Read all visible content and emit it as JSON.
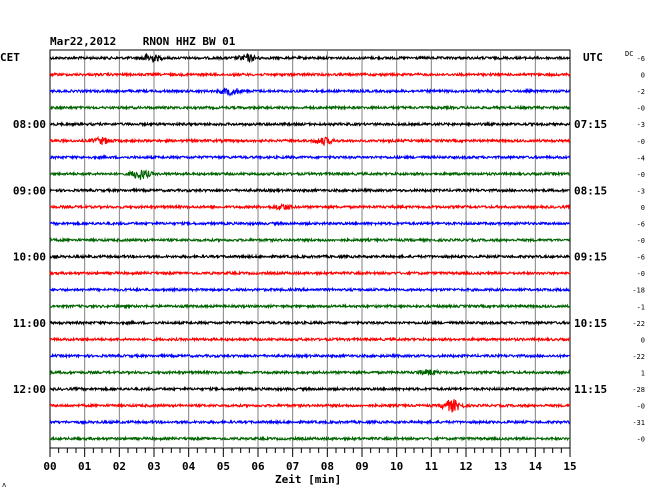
{
  "chart_data": {
    "type": "line",
    "title": "Mar22,2012    RNON HHZ BW 01",
    "left_timezone": "CET",
    "right_timezone": "UTC",
    "dc_header": "DC",
    "xlabel": "Zeit [min]",
    "xlim": [
      0,
      15
    ],
    "x_ticks": [
      "00",
      "01",
      "02",
      "03",
      "04",
      "05",
      "06",
      "07",
      "08",
      "09",
      "10",
      "11",
      "12",
      "13",
      "14",
      "15"
    ],
    "trace_count": 24,
    "trace_interval_min": 15,
    "trace_colors": [
      "#000000",
      "#ff0000",
      "#0000ff",
      "#006400"
    ],
    "left_hour_labels": [
      {
        "trace": 4,
        "text": "08:00"
      },
      {
        "trace": 8,
        "text": "09:00"
      },
      {
        "trace": 12,
        "text": "10:00"
      },
      {
        "trace": 16,
        "text": "11:00"
      },
      {
        "trace": 20,
        "text": "12:00"
      }
    ],
    "right_hour_labels": [
      {
        "trace": 4,
        "text": "07:15"
      },
      {
        "trace": 8,
        "text": "08:15"
      },
      {
        "trace": 12,
        "text": "09:15"
      },
      {
        "trace": 16,
        "text": "10:15"
      },
      {
        "trace": 20,
        "text": "11:15"
      }
    ],
    "dc_offsets": [
      "-6",
      "0",
      "-2",
      "-0",
      "-3",
      "-0",
      "-4",
      "-0",
      "-3",
      "0",
      "-6",
      "-0",
      "-6",
      "-0",
      "-18",
      "-1",
      "-22",
      "0",
      "-22",
      "1",
      "-28",
      "-0",
      "-31",
      "-0"
    ],
    "events": [
      {
        "trace": 0,
        "minute": 2.9,
        "amplitude": 2.0
      },
      {
        "trace": 0,
        "minute": 5.7,
        "amplitude": 1.6
      },
      {
        "trace": 2,
        "minute": 5.2,
        "amplitude": 1.8
      },
      {
        "trace": 5,
        "minute": 1.5,
        "amplitude": 1.5
      },
      {
        "trace": 5,
        "minute": 7.9,
        "amplitude": 1.6
      },
      {
        "trace": 7,
        "minute": 2.6,
        "amplitude": 2.5
      },
      {
        "trace": 9,
        "minute": 6.7,
        "amplitude": 1.3
      },
      {
        "trace": 19,
        "minute": 10.9,
        "amplitude": 1.3
      },
      {
        "trace": 21,
        "minute": 11.6,
        "amplitude": 3.0
      }
    ]
  },
  "corner_mark": "ʌ"
}
